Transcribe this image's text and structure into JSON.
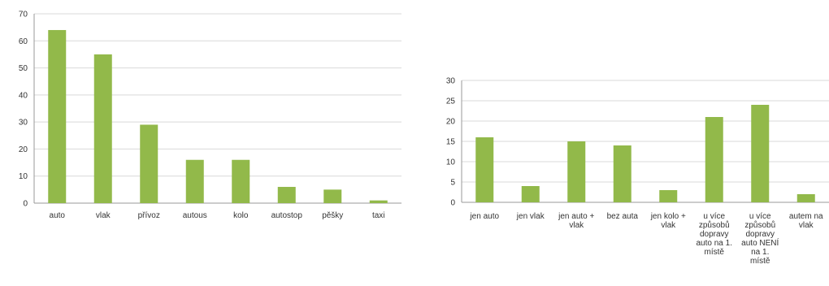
{
  "chart_data": [
    {
      "type": "bar",
      "categories": [
        "auto",
        "vlak",
        "přívoz",
        "autous",
        "kolo",
        "autostop",
        "pěšky",
        "taxi"
      ],
      "values": [
        64,
        55,
        29,
        16,
        16,
        6,
        5,
        1
      ],
      "ylim": [
        0,
        70
      ],
      "yticks": [
        0,
        10,
        20,
        30,
        40,
        50,
        60,
        70
      ],
      "grid": true,
      "bar_color": "#92b94a"
    },
    {
      "type": "bar",
      "categories": [
        [
          "jen auto"
        ],
        [
          "jen vlak"
        ],
        [
          "jen auto +",
          "vlak"
        ],
        [
          "bez auta"
        ],
        [
          "jen kolo +",
          "vlak"
        ],
        [
          "u více",
          "způsobů",
          "dopravy",
          "auto na 1.",
          "místě"
        ],
        [
          "u více",
          "způsobů",
          "dopravy",
          "auto NENÍ",
          "na 1.",
          "místě"
        ],
        [
          "autem na",
          "vlak"
        ]
      ],
      "values": [
        16,
        4,
        15,
        14,
        3,
        21,
        24,
        2
      ],
      "ylim": [
        0,
        30
      ],
      "yticks": [
        0,
        5,
        10,
        15,
        20,
        25,
        30
      ],
      "grid": true,
      "bar_color": "#92b94a"
    }
  ]
}
